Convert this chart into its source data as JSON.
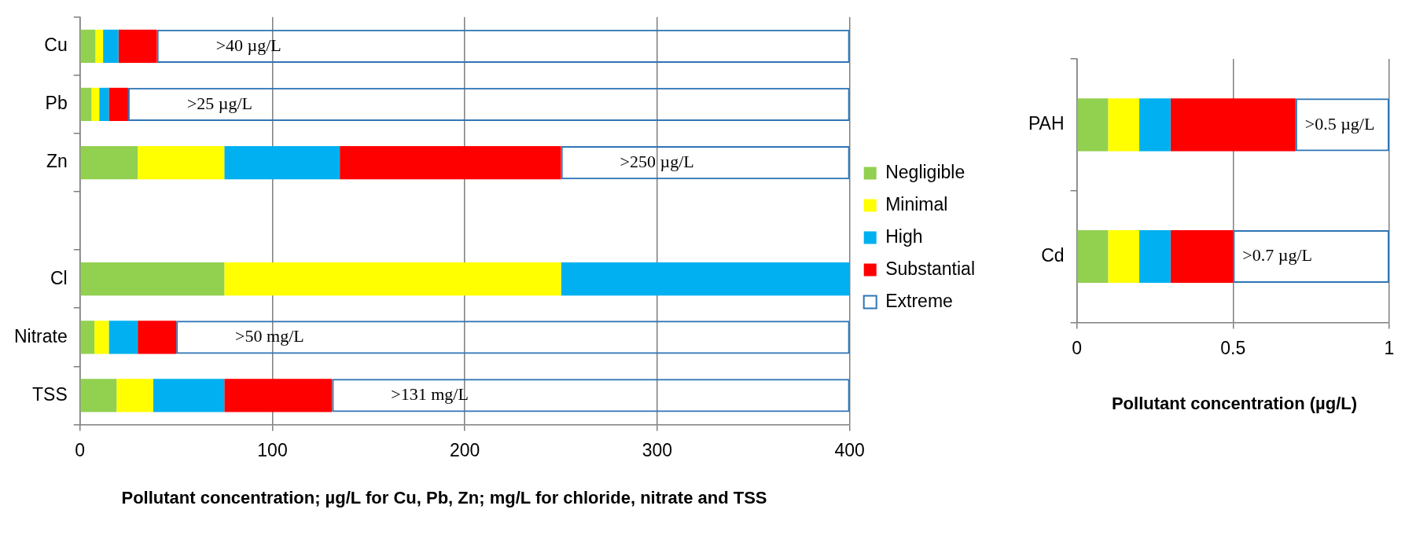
{
  "chart_data": [
    {
      "type": "bar",
      "orientation": "horizontal",
      "stacked": true,
      "xlabel": "Pollutant concentration; µg/L for Cu, Pb, Zn; mg/L for chloride, nitrate and TSS",
      "categories": [
        "Cu",
        "Pb",
        "Zn",
        null,
        "Cl",
        "Nitrate",
        "TSS"
      ],
      "series": [
        {
          "name": "Negligible",
          "color": "#92d050",
          "values": [
            8,
            6,
            30,
            null,
            75,
            7.5,
            19
          ]
        },
        {
          "name": "Minimal",
          "color": "#ffff00",
          "values": [
            4,
            4,
            45,
            null,
            175,
            7.5,
            19
          ]
        },
        {
          "name": "High",
          "color": "#00b0f0",
          "values": [
            8,
            5,
            60,
            null,
            150,
            15,
            37
          ]
        },
        {
          "name": "Substantial",
          "color": "#ff0000",
          "values": [
            20,
            10,
            115,
            null,
            null,
            20,
            56
          ]
        },
        {
          "name": "Extreme",
          "color": "#2e75b6",
          "values": [
            360,
            375,
            150,
            null,
            null,
            350,
            269
          ],
          "value_labels": [
            ">40 µg/L",
            ">25 µg/L",
            ">250 µg/L",
            null,
            null,
            ">50 mg/L",
            ">131 mg/L"
          ]
        }
      ],
      "xlim": [
        0,
        400
      ],
      "xticks": [
        0,
        100,
        200,
        300,
        400
      ],
      "grid": "x",
      "legend": "right"
    },
    {
      "type": "bar",
      "orientation": "horizontal",
      "stacked": true,
      "xlabel": "Pollutant concentration (µg/L)",
      "categories": [
        "PAH",
        "Cd"
      ],
      "series": [
        {
          "color": "#92d050",
          "values": [
            0.1,
            0.1
          ]
        },
        {
          "color": "#ffff00",
          "values": [
            0.1,
            0.1
          ]
        },
        {
          "color": "#00b0f0",
          "values": [
            0.1,
            0.1
          ]
        },
        {
          "color": "#ff0000",
          "values": [
            0.4,
            0.2
          ]
        },
        {
          "color": "#2e75b6",
          "values": [
            0.3,
            0.5
          ],
          "value_labels": [
            ">0.5 µg/L",
            ">0.7 µg/L"
          ]
        }
      ],
      "xlim": [
        0,
        1
      ],
      "xticks": [
        0,
        0.5,
        1
      ],
      "grid": "x"
    }
  ]
}
